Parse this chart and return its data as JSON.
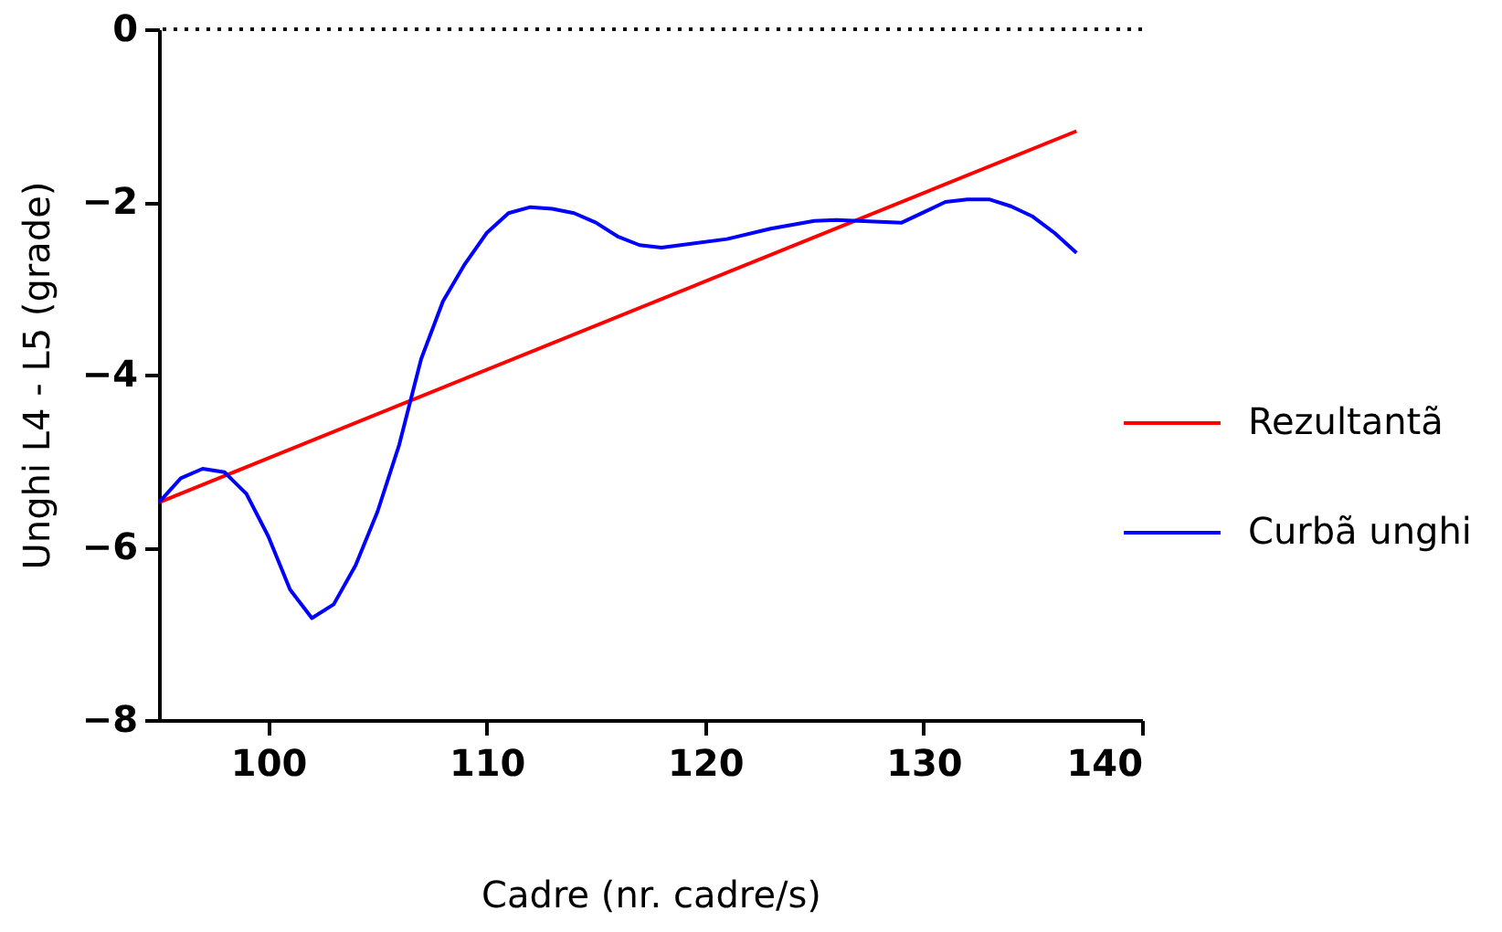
{
  "chart_data": {
    "type": "line",
    "xlabel": "Cadre (nr. cadre/s)",
    "ylabel": "Unghi L4 - L5 (grade)",
    "xlim": [
      95,
      140
    ],
    "xticks": [
      100,
      110,
      120,
      130,
      140
    ],
    "ylim": [
      -8,
      0
    ],
    "yticks": [
      -8,
      -6,
      -4,
      -2,
      0
    ],
    "grid": false,
    "legend": "right",
    "marker": "none",
    "line_style": "solid",
    "ref_lines": [
      {
        "axis": "y",
        "value": 0,
        "line_style": "dotted",
        "color": "#000000"
      }
    ],
    "series": [
      {
        "name": "Rezultantã",
        "color": "#ff0000",
        "x": [
          95,
          137
        ],
        "values": [
          -5.48,
          -1.18
        ]
      },
      {
        "name": "Curbã unghi",
        "color": "#0000ff",
        "x": [
          95,
          96,
          97,
          98,
          99,
          100,
          101,
          102,
          103,
          104,
          105,
          106,
          107,
          108,
          109,
          110,
          111,
          112,
          113,
          114,
          115,
          116,
          117,
          118,
          121,
          123,
          125,
          126,
          127,
          129,
          130,
          131,
          132,
          133,
          134,
          135,
          136,
          137
        ],
        "values": [
          -5.48,
          -5.2,
          -5.09,
          -5.13,
          -5.38,
          -5.87,
          -6.49,
          -6.82,
          -6.66,
          -6.21,
          -5.59,
          -4.81,
          -3.82,
          -3.15,
          -2.72,
          -2.36,
          -2.13,
          -2.06,
          -2.08,
          -2.13,
          -2.24,
          -2.4,
          -2.5,
          -2.53,
          -2.43,
          -2.31,
          -2.22,
          -2.21,
          -2.22,
          -2.24,
          -2.12,
          -2,
          -1.97,
          -1.97,
          -2.05,
          -2.17,
          -2.36,
          -2.59
        ]
      }
    ]
  }
}
